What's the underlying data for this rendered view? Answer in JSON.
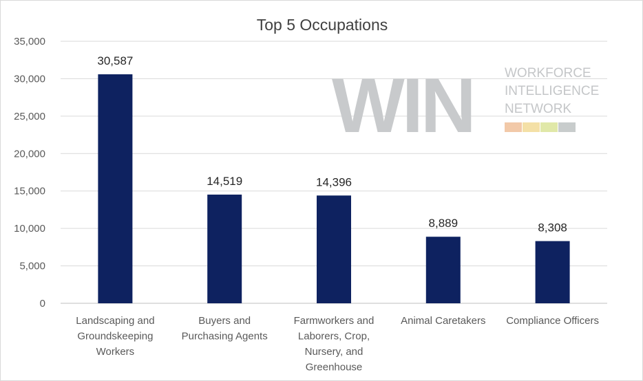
{
  "chart_data": {
    "type": "bar",
    "title": "Top 5 Occupations",
    "categories": [
      [
        "Landscaping and",
        "Groundskeeping",
        "Workers"
      ],
      [
        "Buyers and",
        "Purchasing Agents"
      ],
      [
        "Farmworkers and",
        "Laborers, Crop,",
        "Nursery, and",
        "Greenhouse"
      ],
      [
        "Animal Caretakers"
      ],
      [
        "Compliance Officers"
      ]
    ],
    "values": [
      30587,
      14519,
      14396,
      8889,
      8308
    ],
    "data_labels": [
      "30,587",
      "14,519",
      "14,396",
      "8,889",
      "8,308"
    ],
    "ylim": [
      0,
      35000
    ],
    "yticks": [
      "0",
      "5,000",
      "10,000",
      "15,000",
      "20,000",
      "25,000",
      "30,000",
      "35,000"
    ],
    "grid": true,
    "bar_color": "#0e2260"
  },
  "watermark": {
    "logo_text": "WIN",
    "lines": [
      "WORKFORCE",
      "INTELLIGENCE",
      "NETWORK"
    ],
    "stripe_colors": [
      "#f2c9a8",
      "#f4e0a6",
      "#e0e8a8",
      "#c8cccc"
    ]
  }
}
